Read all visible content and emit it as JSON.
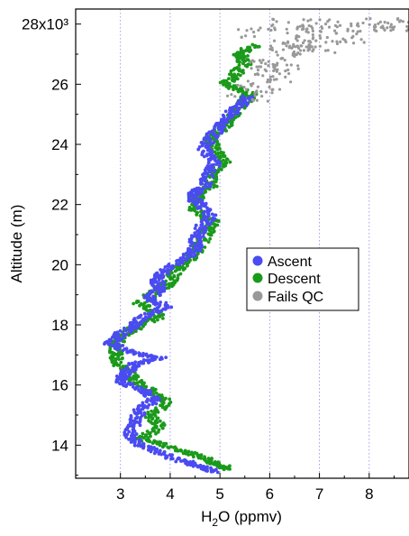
{
  "chart_data": {
    "type": "scatter",
    "xlabel": {
      "main": "H",
      "sub": "2",
      "rest": "O (ppmv)"
    },
    "ylabel": "Altitude (m)",
    "xlim": [
      2.1,
      8.8
    ],
    "ylim": [
      12900,
      28500
    ],
    "x_ticks": [
      3,
      4,
      5,
      6,
      7,
      8
    ],
    "x_tick_labels": [
      "3",
      "4",
      "5",
      "6",
      "7",
      "8"
    ],
    "y_ticks": [
      14000,
      16000,
      18000,
      20000,
      22000,
      24000,
      26000,
      28000
    ],
    "y_tick_labels": [
      "14",
      "16",
      "18",
      "20",
      "22",
      "24",
      "26",
      "28x10³"
    ],
    "x_gridlines": [
      3,
      4,
      5,
      6,
      7,
      8
    ],
    "legend_position": "right-middle",
    "series": [
      {
        "name": "Ascent",
        "color": "#4b4bf2",
        "profile": [
          [
            4.9,
            13100
          ],
          [
            4.6,
            13300
          ],
          [
            4.2,
            13500
          ],
          [
            3.7,
            13800
          ],
          [
            3.3,
            14100
          ],
          [
            3.2,
            14400
          ],
          [
            3.3,
            14800
          ],
          [
            3.4,
            15200
          ],
          [
            3.7,
            15500
          ],
          [
            3.5,
            15800
          ],
          [
            3.0,
            16100
          ],
          [
            3.1,
            16400
          ],
          [
            3.3,
            16700
          ],
          [
            3.8,
            16900
          ],
          [
            3.2,
            17100
          ],
          [
            2.8,
            17400
          ],
          [
            3.0,
            17700
          ],
          [
            3.3,
            18000
          ],
          [
            3.5,
            18300
          ],
          [
            3.9,
            18600
          ],
          [
            3.6,
            18900
          ],
          [
            3.8,
            19200
          ],
          [
            3.7,
            19500
          ],
          [
            3.9,
            19800
          ],
          [
            4.3,
            20200
          ],
          [
            4.5,
            20500
          ],
          [
            4.5,
            20800
          ],
          [
            4.6,
            21200
          ],
          [
            4.8,
            21600
          ],
          [
            4.6,
            22000
          ],
          [
            4.4,
            22300
          ],
          [
            4.7,
            22600
          ],
          [
            4.8,
            23000
          ],
          [
            4.9,
            23400
          ],
          [
            4.7,
            23800
          ],
          [
            4.8,
            24200
          ],
          [
            5.0,
            24600
          ],
          [
            5.2,
            25000
          ],
          [
            5.4,
            25300
          ],
          [
            5.6,
            25600
          ]
        ]
      },
      {
        "name": "Descent",
        "color": "#1a9a1a",
        "profile": [
          [
            5.2,
            13200
          ],
          [
            4.9,
            13400
          ],
          [
            4.5,
            13700
          ],
          [
            3.9,
            14000
          ],
          [
            3.4,
            14200
          ],
          [
            3.8,
            14600
          ],
          [
            3.6,
            15000
          ],
          [
            4.0,
            15400
          ],
          [
            3.6,
            15800
          ],
          [
            3.3,
            16200
          ],
          [
            3.0,
            16600
          ],
          [
            2.9,
            17000
          ],
          [
            2.9,
            17400
          ],
          [
            3.1,
            17700
          ],
          [
            3.4,
            18000
          ],
          [
            3.8,
            18300
          ],
          [
            3.4,
            18700
          ],
          [
            3.7,
            19100
          ],
          [
            4.0,
            19400
          ],
          [
            4.1,
            19800
          ],
          [
            4.4,
            20200
          ],
          [
            4.6,
            20600
          ],
          [
            4.7,
            21000
          ],
          [
            4.9,
            21400
          ],
          [
            4.5,
            21800
          ],
          [
            4.5,
            22200
          ],
          [
            4.8,
            22600
          ],
          [
            4.8,
            23000
          ],
          [
            5.1,
            23400
          ],
          [
            4.9,
            23800
          ],
          [
            4.8,
            24200
          ],
          [
            5.1,
            24600
          ],
          [
            5.3,
            25000
          ],
          [
            5.5,
            25400
          ],
          [
            5.6,
            25700
          ],
          [
            5.1,
            26000
          ],
          [
            5.3,
            26300
          ],
          [
            5.5,
            26700
          ],
          [
            5.4,
            27000
          ],
          [
            5.7,
            27300
          ]
        ]
      },
      {
        "name": "Fails QC",
        "color": "#999999",
        "profile": [
          [
            5.6,
            25600
          ],
          [
            5.8,
            25900
          ],
          [
            6.0,
            26200
          ],
          [
            6.2,
            26500
          ],
          [
            6.1,
            26800
          ],
          [
            6.4,
            27100
          ],
          [
            6.6,
            27400
          ],
          [
            6.8,
            27600
          ],
          [
            7.0,
            27800
          ],
          [
            7.2,
            28000
          ],
          [
            7.9,
            27900
          ],
          [
            8.5,
            27950
          ],
          [
            6.4,
            27300
          ],
          [
            6.9,
            27200
          ],
          [
            5.8,
            27700
          ],
          [
            6.3,
            28000
          ],
          [
            7.5,
            27500
          ],
          [
            8.2,
            28050
          ],
          [
            8.7,
            27850
          ],
          [
            6.0,
            26600
          ]
        ]
      }
    ]
  }
}
